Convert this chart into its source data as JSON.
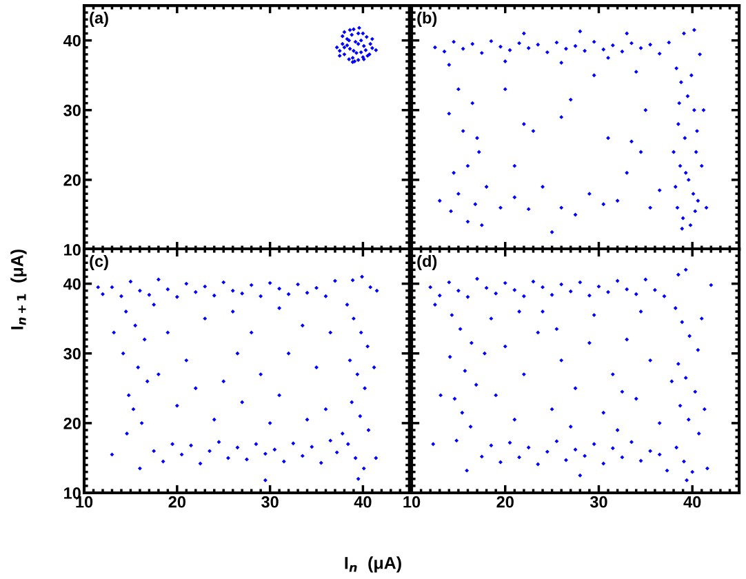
{
  "chart_data": [
    {
      "type": "scatter",
      "annotations": [
        "(a)"
      ],
      "ylabel": "I$_{n+1}$  (μA)",
      "xlim": [
        10,
        45
      ],
      "ylim": [
        10,
        45
      ],
      "xticks": [
        10,
        20,
        30,
        40
      ],
      "yticks": [
        10,
        20,
        30,
        40
      ],
      "tick_labels": "y",
      "marker": "diamond",
      "grid": false,
      "series": [
        {
          "color": "#0000ff",
          "x": [
            37.2,
            37.5,
            37.8,
            38.0,
            38.3,
            38.6,
            38.9,
            39.2,
            39.5,
            39.8,
            40.1,
            40.4,
            40.7,
            41.0,
            41.4,
            37.5,
            38.0,
            38.5,
            39.0,
            39.5,
            40.0,
            40.5,
            41.0,
            38.0,
            38.5,
            39.0,
            39.5,
            40.0,
            37.8,
            38.3,
            38.8,
            39.3,
            39.8,
            40.3,
            40.8,
            38.6,
            39.1,
            39.6,
            40.1,
            38.9
          ],
          "values": [
            39.0,
            38.5,
            39.5,
            38.0,
            40.2,
            38.8,
            37.5,
            39.8,
            41.0,
            38.3,
            39.2,
            40.5,
            38.0,
            38.9,
            38.6,
            37.8,
            41.2,
            37.3,
            41.6,
            37.2,
            41.0,
            37.8,
            40.2,
            39.0,
            40.0,
            38.5,
            39.5,
            37.6,
            40.6,
            39.3,
            40.8,
            38.2,
            40.0,
            38.6,
            39.5,
            41.5,
            37.0,
            41.8,
            37.3,
            36.9
          ]
        }
      ]
    },
    {
      "type": "scatter",
      "annotations": [
        "(b)"
      ],
      "xlim": [
        10,
        45
      ],
      "ylim": [
        10,
        45
      ],
      "xticks": [
        10,
        20,
        30,
        40
      ],
      "yticks": [
        10,
        20,
        30,
        40
      ],
      "tick_labels": false,
      "marker": "diamond",
      "grid": false,
      "series": [
        {
          "color": "#0000ff",
          "x": [
            12.5,
            13.5,
            14.5,
            15.5,
            16.5,
            17.5,
            18.5,
            19.5,
            20.5,
            21.5,
            22.5,
            23.5,
            24.5,
            25.5,
            26.5,
            27.5,
            28.5,
            29.5,
            30.5,
            31.5,
            32.5,
            33.5,
            34.5,
            35.5,
            36.5,
            37.5,
            22,
            28,
            33,
            14,
            20,
            26,
            31,
            38.3,
            38.8,
            39.5,
            40.2,
            38.5,
            39.2,
            40.4,
            38.7,
            39.6,
            40.1,
            38.4,
            39.0,
            40.3,
            38.9,
            39.8,
            40.6,
            38.2,
            39.3,
            40.5,
            38.6,
            39.9,
            40.8,
            40.2,
            39.1,
            38.0,
            41.5,
            41.2,
            41.0,
            15,
            16.5,
            14,
            15.5,
            16,
            14.5,
            15,
            16.8,
            13,
            14.2,
            16,
            17.5,
            18,
            17.2,
            19.5,
            21,
            22.5,
            24,
            25,
            26,
            27.5,
            29,
            30.5,
            32,
            33,
            34.5,
            35.5,
            36.5,
            31,
            33.5,
            27,
            29.5,
            34,
            26,
            22,
            20,
            35,
            17,
            21,
            23
          ],
          "values": [
            39,
            38.4,
            39.8,
            38.8,
            39.5,
            38.2,
            39.9,
            39.1,
            38.6,
            39.6,
            38.9,
            39.4,
            38.3,
            39.7,
            38.8,
            39.2,
            38.5,
            39.8,
            38.7,
            39.3,
            38.4,
            39.6,
            38.9,
            39.4,
            38.1,
            39.7,
            41,
            41.3,
            41.0,
            36.5,
            37,
            36.8,
            37.5,
            36,
            34,
            32,
            30,
            28,
            26,
            24,
            22,
            20,
            18,
            16,
            14.5,
            15.5,
            13,
            13.5,
            17,
            19,
            21,
            27,
            31,
            35,
            38,
            41.5,
            41,
            24,
            16,
            30,
            22,
            33,
            31,
            29.5,
            27,
            22,
            21,
            18,
            16.5,
            17,
            15.5,
            14,
            13.5,
            19,
            24,
            16,
            17.5,
            15.8,
            19,
            12.5,
            16,
            15,
            18,
            16.5,
            17,
            21,
            24,
            16,
            18.5,
            26,
            25.5,
            31.5,
            35,
            35.5,
            29,
            28,
            33,
            30,
            26,
            22,
            27
          ]
        }
      ]
    },
    {
      "type": "scatter",
      "annotations": [
        "(c)"
      ],
      "xlim": [
        10,
        45
      ],
      "ylim": [
        10,
        45
      ],
      "xticks": [
        10,
        20,
        30,
        40
      ],
      "yticks": [
        10,
        20,
        30,
        40
      ],
      "marker": "diamond",
      "grid": false,
      "series": [
        {
          "color": "#0000ff",
          "x": [
            12,
            13,
            14,
            15,
            16,
            17,
            18,
            19,
            20,
            21,
            22,
            23,
            24,
            25,
            26,
            27,
            28,
            29,
            30,
            31,
            32,
            33,
            34,
            35,
            36,
            37,
            41.5,
            11.5,
            38.3,
            39,
            39.8,
            40.5,
            38.6,
            39.4,
            40.2,
            38.8,
            39.7,
            40.6,
            38.4,
            39.2,
            40.1,
            39.5,
            38.9,
            39.9,
            40.8,
            41.2,
            37.8,
            41.4,
            14.5,
            15.5,
            16.5,
            14.2,
            15.8,
            16.8,
            14.8,
            15.3,
            16.2,
            14.6,
            16,
            13.2,
            13,
            17.5,
            17.5,
            18.5,
            19.5,
            20.5,
            21.5,
            22.5,
            23.5,
            24.5,
            25.5,
            26.5,
            27.5,
            28.5,
            29.5,
            30.5,
            29.5,
            31.5,
            32.5,
            33.5,
            34.5,
            35.5,
            36.5,
            37.2,
            19,
            21,
            23,
            25,
            26.5,
            27,
            28,
            29,
            31,
            32,
            33.5,
            35,
            36,
            20,
            22,
            24,
            30,
            34,
            18,
            26,
            31,
            36.5
          ],
          "values": [
            38.5,
            39.5,
            38.2,
            40.3,
            39,
            38.4,
            40.6,
            39.2,
            38.1,
            40,
            38.8,
            39.6,
            38.3,
            40.2,
            39,
            38.6,
            39.8,
            38.2,
            40.1,
            39.3,
            38.5,
            39.9,
            38.7,
            39.4,
            38.2,
            40.4,
            39,
            39.5,
            37,
            35,
            33,
            31,
            29,
            27,
            25,
            23,
            21,
            19,
            17,
            15,
            13.5,
            12,
            40.5,
            41,
            39.5,
            28,
            18.5,
            15,
            36,
            34,
            32,
            30,
            28,
            26,
            24,
            22,
            20,
            18.5,
            13.5,
            33,
            15.5,
            37,
            16,
            14.5,
            17,
            15.5,
            16.8,
            14.2,
            16,
            17.3,
            15,
            16.5,
            14.8,
            17,
            15.6,
            16.2,
            11.8,
            14.5,
            17.1,
            15.3,
            16.6,
            14.3,
            17.5,
            15.8,
            33,
            29,
            35,
            26,
            30,
            23,
            33,
            27,
            24,
            30,
            34,
            28,
            22,
            22.5,
            25,
            20.5,
            20,
            20.5,
            27,
            36,
            36.5,
            33
          ]
        }
      ]
    },
    {
      "type": "scatter",
      "annotations": [
        "(d)"
      ],
      "xlim": [
        10,
        45
      ],
      "ylim": [
        10,
        45
      ],
      "xticks": [
        10,
        20,
        30,
        40
      ],
      "yticks": [
        10,
        20,
        30,
        40
      ],
      "tick_labels": "x",
      "marker": "diamond",
      "grid": false,
      "series": [
        {
          "color": "#0000ff",
          "x": [
            12,
            13,
            14,
            15,
            16,
            17,
            18,
            19,
            20,
            21,
            22,
            23,
            24,
            25,
            26,
            27,
            28,
            29,
            30,
            31,
            32,
            33,
            34,
            35,
            36,
            37,
            38.5,
            39.3,
            42,
            12.5,
            38.2,
            38.9,
            39.7,
            40.6,
            38.5,
            39.3,
            40.3,
            38.7,
            39.6,
            40.7,
            38.3,
            39.1,
            40,
            39.4,
            41.3,
            41,
            37.8,
            14.3,
            15.2,
            16.4,
            14.1,
            15.7,
            16.9,
            14.6,
            15.4,
            16.3,
            14.8,
            15.9,
            13.1,
            12.3,
            17.8,
            17.5,
            18.5,
            19.5,
            20.5,
            21.5,
            22.5,
            23.5,
            24.5,
            25.5,
            26.5,
            27.5,
            28.5,
            29.5,
            30.5,
            31.5,
            32.5,
            33.5,
            34.5,
            35.5,
            36.5,
            37.3,
            28,
            41.6,
            18.5,
            20,
            22,
            23.5,
            25,
            26,
            27.5,
            29,
            30.5,
            31.5,
            33,
            34,
            35.5,
            36.5,
            19,
            21,
            24,
            27,
            29.5,
            32,
            34.5,
            21.5,
            25.5,
            32.5
          ],
          "values": [
            39.5,
            38.3,
            40.2,
            39,
            38.1,
            40.7,
            39.4,
            38.6,
            40.1,
            39.1,
            38.2,
            40.3,
            39.5,
            38.4,
            39.9,
            38.9,
            40.2,
            38.3,
            39.6,
            38.8,
            40.4,
            39.2,
            38.5,
            40.6,
            39.1,
            38.2,
            41.3,
            42,
            39.8,
            37,
            36.5,
            34.5,
            32.5,
            30.5,
            28.5,
            26.5,
            24.5,
            22.5,
            20.5,
            18.5,
            16.5,
            14.5,
            13,
            11.8,
            22,
            35,
            26,
            35.5,
            33.5,
            31.5,
            29.5,
            27.5,
            25.5,
            23.5,
            21.5,
            19.5,
            17.5,
            13.2,
            24,
            17,
            30,
            15.2,
            16.8,
            14.4,
            17.2,
            15.1,
            16.5,
            14.1,
            15.9,
            17.4,
            14.7,
            16.2,
            15.3,
            17,
            14.2,
            16.4,
            15.1,
            17.3,
            14.6,
            16,
            15.5,
            13.2,
            12.5,
            13.5,
            35,
            31,
            27,
            33,
            22,
            29,
            25,
            31.5,
            21.5,
            27,
            32,
            23.5,
            29,
            20,
            24,
            20.5,
            36,
            19.5,
            35.5,
            19,
            36,
            36,
            33.5,
            24.5
          ]
        }
      ]
    },
    {
      "type": "other",
      "xlabel": "I$_{n}$  (μA)"
    }
  ]
}
